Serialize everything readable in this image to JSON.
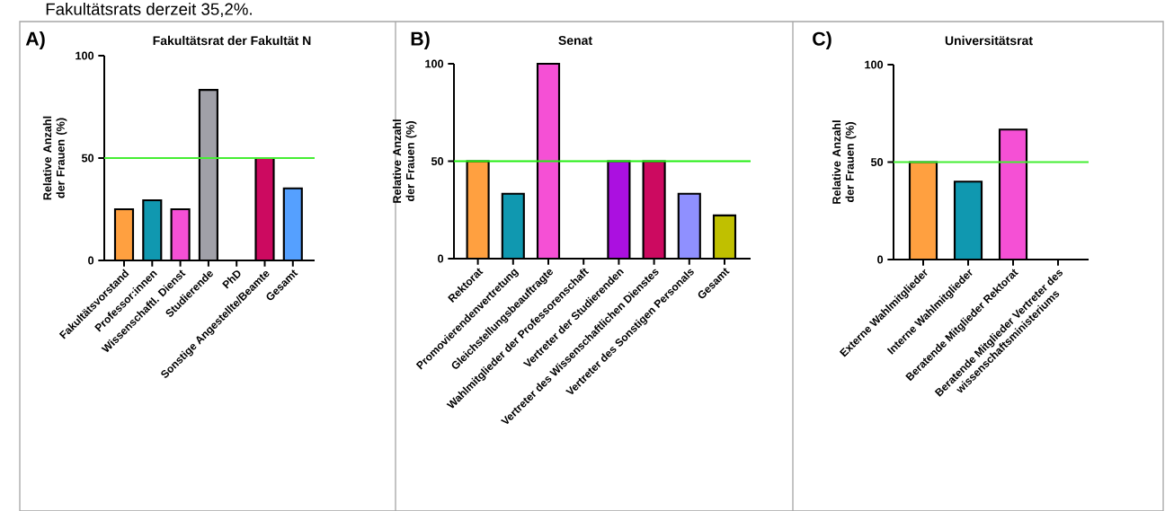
{
  "chart_data": [
    {
      "type": "bar",
      "title": "Fakultätsrat der Fakultät N",
      "ylabel": "Relative Anzahl der Frauen (%)",
      "categories": [
        "Fakultätsvorstand",
        "Professor:innen",
        "Wissenschaftl. Dienst",
        "Studierende",
        "PhD",
        "Sonstige Angestellte/Beamte",
        "Gesamt"
      ],
      "values": [
        25,
        29.4,
        25,
        83.3,
        0,
        50,
        35.2
      ],
      "colors": [
        "#ffa040",
        "#1098b0",
        "#f550d5",
        "#a0a0a8",
        null,
        "#cc0a60",
        "#55a0ff"
      ],
      "ylim": [
        0,
        100
      ],
      "yticks": [
        0,
        50,
        100
      ],
      "ref_lines": [
        {
          "axis": "y",
          "value": 50,
          "color": "#44ee33"
        }
      ],
      "annotations": [
        "A)",
        "Fakultätsrats derzeit 35,2%."
      ]
    },
    {
      "type": "bar",
      "title": "Senat",
      "ylabel": "Relative Anzahl der Frauen (%)",
      "categories": [
        "Rektorat",
        "Promovierendenvertretung",
        "Gleichstellungsbeauftragte",
        "Wahlmitglieder der Professorenschaft",
        "Vertreter der Studierenden",
        "Vertreter des Wissenschaftlichen Dienstes",
        "Vertreter des Sonstigen Personals",
        "Gesamt"
      ],
      "values": [
        50,
        33.3,
        100,
        0,
        50,
        50,
        33.3,
        22.2
      ],
      "colors": [
        "#ffa040",
        "#1098b0",
        "#f550d5",
        null,
        "#ab10e0",
        "#cc0a60",
        "#8f90ff",
        "#c0c000"
      ],
      "ylim": [
        0,
        100
      ],
      "yticks": [
        0,
        50,
        100
      ],
      "ref_lines": [
        {
          "axis": "y",
          "value": 50,
          "color": "#22ee11"
        }
      ],
      "annotations": [
        "B)"
      ]
    },
    {
      "type": "bar",
      "title": "Universitätsrat",
      "ylabel": "Relative Anzahl der Frauen (%)",
      "categories": [
        "Externe Wahlmitglieder",
        "Interne Wahlmitglieder",
        "Beratende Mitglieder Rektorat",
        "Beratende Mitglieder Vertreter des wissenschaftsministeriums"
      ],
      "values": [
        50,
        40,
        66.7,
        0
      ],
      "colors": [
        "#ffa040",
        "#1098b0",
        "#f550d5",
        null
      ],
      "ylim": [
        0,
        100
      ],
      "yticks": [
        0,
        50,
        100
      ],
      "ref_lines": [
        {
          "axis": "y",
          "value": 50,
          "color": "#44ee33"
        }
      ],
      "annotations": [
        "C)"
      ]
    }
  ]
}
